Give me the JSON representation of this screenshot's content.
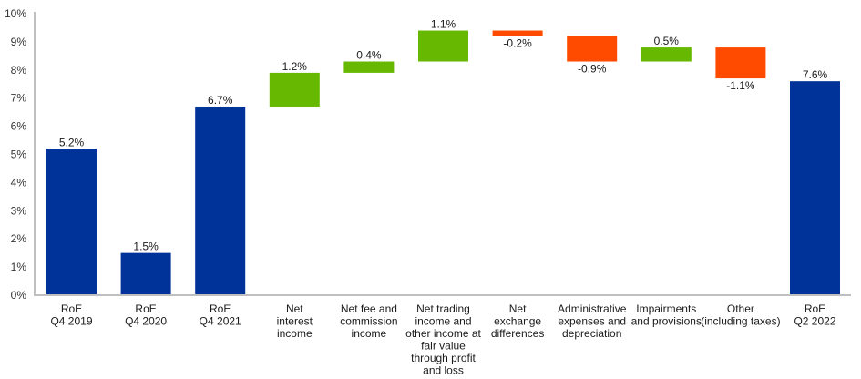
{
  "chart_data": {
    "type": "bar",
    "subtype": "waterfall",
    "title": "",
    "xlabel": "",
    "ylabel": "",
    "ylim": [
      0,
      10
    ],
    "yticks": [
      "0%",
      "1%",
      "2%",
      "3%",
      "4%",
      "5%",
      "6%",
      "7%",
      "8%",
      "9%",
      "10%"
    ],
    "grid": false,
    "legend": "none",
    "colors": {
      "total": "#003399",
      "increase": "#66B800",
      "decrease": "#FF4B00",
      "axis": "#BFBFBF"
    },
    "categories": [
      [
        "RoE",
        "Q4 2019"
      ],
      [
        "RoE",
        "Q4 2020"
      ],
      [
        "RoE",
        "Q4 2021"
      ],
      [
        "Net",
        "interest",
        "income"
      ],
      [
        "Net fee and",
        "commission",
        "income"
      ],
      [
        "Net trading",
        "income and",
        "other income at",
        "fair value",
        "through profit",
        "and loss"
      ],
      [
        "Net",
        "exchange",
        "differences"
      ],
      [
        "Administrative",
        "expenses and",
        "depreciation"
      ],
      [
        "Impairments",
        "and provisions"
      ],
      [
        "Other",
        "(including taxes)"
      ],
      [
        "RoE",
        "Q2 2022"
      ]
    ],
    "bars": [
      {
        "kind": "total",
        "value": 5.2,
        "label": "5.2%"
      },
      {
        "kind": "total",
        "value": 1.5,
        "label": "1.5%"
      },
      {
        "kind": "total",
        "value": 6.7,
        "label": "6.7%"
      },
      {
        "kind": "delta",
        "value": 1.2,
        "label": "1.2%"
      },
      {
        "kind": "delta",
        "value": 0.4,
        "label": "0.4%"
      },
      {
        "kind": "delta",
        "value": 1.1,
        "label": "1.1%"
      },
      {
        "kind": "delta",
        "value": -0.2,
        "label": "-0.2%"
      },
      {
        "kind": "delta",
        "value": -0.9,
        "label": "-0.9%"
      },
      {
        "kind": "delta",
        "value": 0.5,
        "label": "0.5%"
      },
      {
        "kind": "delta",
        "value": -1.1,
        "label": "-1.1%"
      },
      {
        "kind": "total",
        "value": 7.6,
        "label": "7.6%"
      }
    ]
  }
}
